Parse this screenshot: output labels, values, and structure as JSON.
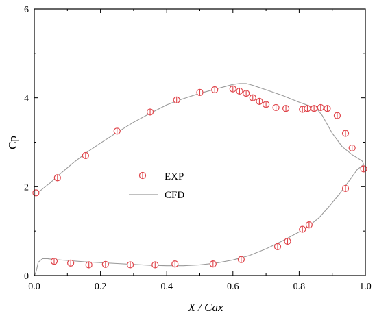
{
  "chart_data": {
    "type": "scatter",
    "xlabel": "X / Cax",
    "ylabel": "Cp",
    "xlim": [
      0,
      1
    ],
    "ylim": [
      0,
      6
    ],
    "xticks": [
      "0.0",
      "0.2",
      "0.4",
      "0.6",
      "0.8",
      "1.0"
    ],
    "yticks": [
      "0",
      "2",
      "4",
      "6"
    ],
    "legend_position": "center-left",
    "colors": {
      "exp": "#e0454b",
      "cfd": "#9a9a9a",
      "axis": "#000000"
    },
    "series": [
      {
        "name": "EXP",
        "kind": "markers",
        "x": [
          0.005,
          0.07,
          0.155,
          0.25,
          0.35,
          0.43,
          0.5,
          0.545,
          0.6,
          0.62,
          0.64,
          0.66,
          0.68,
          0.7,
          0.73,
          0.76,
          0.81,
          0.825,
          0.845,
          0.865,
          0.885,
          0.915,
          0.94,
          0.96,
          0.995,
          0.94,
          0.83,
          0.81,
          0.765,
          0.735,
          0.625,
          0.54,
          0.425,
          0.365,
          0.29,
          0.215,
          0.165,
          0.11,
          0.06
        ],
        "y": [
          1.86,
          2.2,
          2.7,
          3.25,
          3.68,
          3.95,
          4.12,
          4.18,
          4.2,
          4.15,
          4.1,
          4.0,
          3.92,
          3.85,
          3.78,
          3.76,
          3.74,
          3.76,
          3.76,
          3.78,
          3.76,
          3.6,
          3.2,
          2.87,
          2.4,
          1.96,
          1.14,
          1.04,
          0.77,
          0.65,
          0.36,
          0.26,
          0.26,
          0.24,
          0.24,
          0.25,
          0.24,
          0.28,
          0.32
        ]
      },
      {
        "name": "CFD",
        "kind": "line",
        "x": [
          0.005,
          0.02,
          0.05,
          0.08,
          0.12,
          0.16,
          0.2,
          0.25,
          0.3,
          0.35,
          0.4,
          0.45,
          0.5,
          0.55,
          0.58,
          0.6,
          0.62,
          0.64,
          0.66,
          0.7,
          0.75,
          0.8,
          0.83,
          0.85,
          0.87,
          0.9,
          0.93,
          0.96,
          0.99,
          0.995,
          0.975,
          0.95,
          0.92,
          0.89,
          0.86,
          0.83,
          0.8,
          0.75,
          0.7,
          0.65,
          0.6,
          0.55,
          0.5,
          0.45,
          0.4,
          0.35,
          0.3,
          0.25,
          0.2,
          0.15,
          0.1,
          0.06,
          0.04,
          0.025,
          0.012,
          0.006,
          0.002,
          0.0
        ],
        "y": [
          1.86,
          1.92,
          2.1,
          2.3,
          2.55,
          2.78,
          2.98,
          3.22,
          3.45,
          3.65,
          3.84,
          3.98,
          4.1,
          4.2,
          4.26,
          4.3,
          4.32,
          4.32,
          4.28,
          4.18,
          4.05,
          3.9,
          3.82,
          3.78,
          3.6,
          3.2,
          2.9,
          2.72,
          2.58,
          2.5,
          2.38,
          2.12,
          1.82,
          1.55,
          1.3,
          1.12,
          0.98,
          0.78,
          0.6,
          0.45,
          0.35,
          0.28,
          0.24,
          0.22,
          0.22,
          0.23,
          0.25,
          0.27,
          0.29,
          0.31,
          0.34,
          0.36,
          0.38,
          0.38,
          0.3,
          0.1,
          0.02,
          0.0
        ]
      }
    ]
  }
}
